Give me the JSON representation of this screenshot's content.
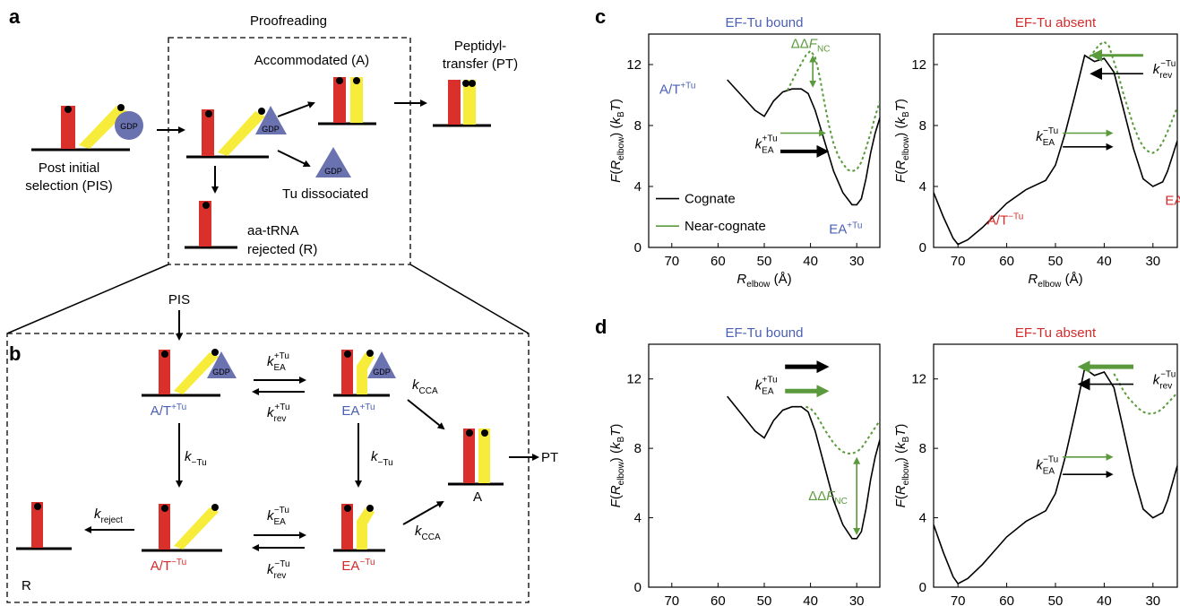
{
  "colors": {
    "trna_red": "#d9302c",
    "trna_yellow": "#f7ec3a",
    "eftu_blue": "#6a72b0",
    "cognate_line": "#000000",
    "near_cognate_line": "#5a9a3c",
    "label_blue": "#4a5fb4",
    "label_red": "#d62a2a",
    "arrow_green": "#5a9a3c"
  },
  "panel_a": {
    "letter": "a",
    "proofreading_title": "Proofreading",
    "pis_label_1": "Post initial",
    "pis_label_2": "selection (PIS)",
    "gdp": "GDP",
    "accommodated": "Accommodated (A)",
    "peptidyl_1": "Peptidyl-",
    "peptidyl_2": "transfer (PT)",
    "tu_dissociated": "Tu dissociated",
    "rejected_1": "aa-tRNA",
    "rejected_2": "rejected (R)"
  },
  "panel_b": {
    "letter": "b",
    "pis": "PIS",
    "at_plus": "A/T",
    "at_plus_sup": "+Tu",
    "ea_plus": "EA",
    "ea_plus_sup": "+Tu",
    "at_minus": "A/T",
    "at_minus_sup": "−Tu",
    "ea_minus": "EA",
    "ea_minus_sup": "−Tu",
    "a_state": "A",
    "pt": "PT",
    "r_state": "R",
    "k": "k",
    "k_ea_plus_sub": "EA",
    "k_ea_plus_sup": "+Tu",
    "k_rev_plus_sub": "rev",
    "k_rev_plus_sup": "+Tu",
    "k_ea_minus_sub": "EA",
    "k_ea_minus_sup": "−Tu",
    "k_rev_minus_sub": "rev",
    "k_rev_minus_sup": "−Tu",
    "k_cca_sub": "CCA",
    "k_minus_tu_sub": "−Tu",
    "k_reject_sub": "reject",
    "gdp": "GDP"
  },
  "plots": {
    "letter_c": "c",
    "letter_d": "d",
    "title_bound": "EF-Tu bound",
    "title_absent": "EF-Tu absent",
    "ylabel_F": "F",
    "ylabel_paren_open": "(",
    "ylabel_R": "R",
    "ylabel_elbow": "elbow",
    "ylabel_mid": ") (",
    "ylabel_k": "k",
    "ylabel_B": "B",
    "ylabel_T": "T",
    "ylabel_close": ")",
    "xlabel_R": "R",
    "xlabel_elbow": "elbow",
    "xlabel_unit": " (Å)",
    "legend_cognate": "Cognate",
    "legend_near": "Near-cognate",
    "ddf_delta": "ΔΔ",
    "ddf_F": "F",
    "ddf_sub": "NC",
    "at_label": "A/T",
    "at_sup_plus": "+Tu",
    "at_sup_minus": "−Tu",
    "ea_label": "EA",
    "ea_sup_plus": "+Tu",
    "ea_sup_minus": "−Tu",
    "k": "k",
    "k_ea_sub": "EA",
    "k_rev_sub": "rev",
    "k_sup_plus": "+Tu",
    "k_sup_minus": "−Tu"
  },
  "chart_data": [
    {
      "type": "line",
      "panel": "c-left",
      "title": "EF-Tu bound",
      "xlim": [
        75,
        25
      ],
      "ylim": [
        0,
        14
      ],
      "xticks": [
        70,
        60,
        50,
        40,
        30
      ],
      "yticks": [
        0,
        4,
        8,
        12
      ],
      "series": [
        {
          "name": "Cognate",
          "x": [
            58,
            55,
            52,
            50,
            48,
            46,
            44,
            42,
            40.5,
            39,
            37,
            35,
            33,
            31,
            30,
            29,
            28,
            27,
            26,
            25
          ],
          "y": [
            11.0,
            10.0,
            9.0,
            8.6,
            9.6,
            10.2,
            10.4,
            10.4,
            10.1,
            9.0,
            7.0,
            5.0,
            3.6,
            2.8,
            2.8,
            3.2,
            4.5,
            6.2,
            7.5,
            8.5
          ]
        },
        {
          "name": "Near-cognate",
          "x": [
            45,
            43,
            41,
            40,
            39,
            38,
            37,
            36,
            35,
            34,
            33,
            32,
            31,
            30,
            29,
            28,
            27,
            26,
            25
          ],
          "y": [
            10.3,
            11.5,
            12.6,
            12.9,
            12.5,
            11.2,
            9.5,
            8.0,
            6.8,
            6.0,
            5.5,
            5.1,
            5.0,
            5.1,
            5.6,
            6.5,
            7.5,
            8.6,
            9.6
          ]
        }
      ]
    },
    {
      "type": "line",
      "panel": "c-right",
      "title": "EF-Tu absent",
      "xlim": [
        75,
        25
      ],
      "ylim": [
        0,
        14
      ],
      "xticks": [
        70,
        60,
        50,
        40,
        30
      ],
      "yticks": [
        0,
        4,
        8,
        12
      ],
      "series": [
        {
          "name": "Cognate",
          "x": [
            75,
            73,
            71,
            70,
            68,
            65,
            60,
            56,
            52,
            50,
            48,
            46,
            44,
            42,
            40,
            38,
            36,
            34,
            32,
            30,
            28,
            27,
            26,
            25
          ],
          "y": [
            3.6,
            2.0,
            0.6,
            0.2,
            0.5,
            1.3,
            2.9,
            3.8,
            4.4,
            5.4,
            7.5,
            10.0,
            12.6,
            12.2,
            12.4,
            11.5,
            9.0,
            6.5,
            4.5,
            4.0,
            4.3,
            5.0,
            6.0,
            7.0
          ]
        },
        {
          "name": "Near-cognate",
          "x": [
            43,
            41,
            40,
            39,
            38,
            37,
            36,
            35,
            34,
            33,
            32,
            31,
            30,
            29,
            28,
            27,
            26,
            25
          ],
          "y": [
            12.5,
            13.3,
            13.5,
            13.2,
            12.2,
            11.2,
            10.0,
            9.0,
            8.0,
            7.2,
            6.6,
            6.3,
            6.2,
            6.4,
            6.9,
            7.6,
            8.4,
            9.2
          ]
        }
      ]
    },
    {
      "type": "line",
      "panel": "d-left",
      "title": "EF-Tu bound",
      "xlim": [
        75,
        25
      ],
      "ylim": [
        0,
        14
      ],
      "xticks": [
        70,
        60,
        50,
        40,
        30
      ],
      "yticks": [
        0,
        4,
        8,
        12
      ],
      "series": [
        {
          "name": "Cognate",
          "x": [
            58,
            55,
            52,
            50,
            48,
            46,
            44,
            42,
            40.5,
            39,
            37,
            35,
            33,
            31,
            30,
            29,
            28,
            27,
            26,
            25
          ],
          "y": [
            11.0,
            10.0,
            9.0,
            8.6,
            9.6,
            10.2,
            10.4,
            10.4,
            10.1,
            9.0,
            7.0,
            5.0,
            3.6,
            2.8,
            2.8,
            3.2,
            4.5,
            6.2,
            7.5,
            8.5
          ]
        },
        {
          "name": "Near-cognate",
          "x": [
            41,
            40,
            39,
            38,
            37,
            36,
            35,
            34,
            33,
            32,
            31,
            30,
            29,
            28,
            27,
            26,
            25
          ],
          "y": [
            10.4,
            10.3,
            10.0,
            9.6,
            9.1,
            8.7,
            8.3,
            8.0,
            7.8,
            7.7,
            7.7,
            7.8,
            8.0,
            8.4,
            8.8,
            9.2,
            9.6
          ]
        }
      ]
    },
    {
      "type": "line",
      "panel": "d-right",
      "title": "EF-Tu absent",
      "xlim": [
        75,
        25
      ],
      "ylim": [
        0,
        14
      ],
      "xticks": [
        70,
        60,
        50,
        40,
        30
      ],
      "yticks": [
        0,
        4,
        8,
        12
      ],
      "series": [
        {
          "name": "Cognate",
          "x": [
            75,
            73,
            71,
            70,
            68,
            65,
            60,
            56,
            52,
            50,
            48,
            46,
            44,
            42,
            40,
            38,
            36,
            34,
            32,
            30,
            28,
            27,
            26,
            25
          ],
          "y": [
            3.6,
            2.0,
            0.6,
            0.2,
            0.5,
            1.3,
            2.9,
            3.8,
            4.4,
            5.4,
            7.5,
            10.0,
            12.6,
            12.2,
            12.4,
            11.5,
            9.0,
            6.5,
            4.5,
            4.0,
            4.3,
            5.0,
            6.0,
            7.0
          ]
        },
        {
          "name": "Near-cognate",
          "x": [
            38,
            37,
            36,
            35,
            34,
            33,
            32,
            31,
            30,
            29,
            28,
            27,
            26,
            25
          ],
          "y": [
            12.3,
            11.8,
            11.3,
            10.9,
            10.6,
            10.3,
            10.1,
            10.0,
            10.0,
            10.1,
            10.3,
            10.6,
            10.9,
            11.2
          ]
        }
      ]
    }
  ]
}
